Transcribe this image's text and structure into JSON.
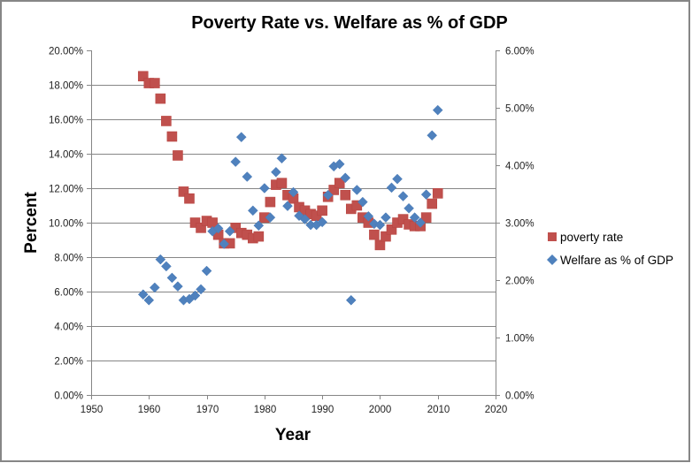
{
  "chart_data": {
    "type": "scatter",
    "title": "Poverty Rate vs. Welfare as % of GDP",
    "xlabel": "Year",
    "ylabel": "Percent",
    "y2label": "",
    "xlim": [
      1950,
      2020
    ],
    "ylim": [
      0,
      20
    ],
    "y2lim": [
      0,
      6
    ],
    "x_ticks": [
      "1950",
      "1960",
      "1970",
      "1980",
      "1990",
      "2000",
      "2010",
      "2020"
    ],
    "y_ticks": [
      "0.00%",
      "2.00%",
      "4.00%",
      "6.00%",
      "8.00%",
      "10.00%",
      "12.00%",
      "14.00%",
      "16.00%",
      "18.00%",
      "20.00%"
    ],
    "y2_ticks": [
      "0.00%",
      "1.00%",
      "2.00%",
      "3.00%",
      "4.00%",
      "5.00%",
      "6.00%"
    ],
    "grid": "horizontal major gridlines on primary axis",
    "legend_position": "right",
    "series": [
      {
        "name": "poverty rate",
        "axis": "left",
        "marker": "square",
        "color": "#C0504D",
        "x": [
          1959,
          1960,
          1961,
          1962,
          1963,
          1964,
          1965,
          1966,
          1967,
          1968,
          1969,
          1970,
          1971,
          1972,
          1973,
          1974,
          1975,
          1976,
          1977,
          1978,
          1979,
          1980,
          1981,
          1982,
          1983,
          1984,
          1985,
          1986,
          1987,
          1988,
          1989,
          1990,
          1991,
          1992,
          1993,
          1994,
          1995,
          1996,
          1997,
          1998,
          1999,
          2000,
          2001,
          2002,
          2003,
          2004,
          2005,
          2006,
          2007,
          2008,
          2009,
          2010
        ],
        "values": [
          18.5,
          18.1,
          18.1,
          17.2,
          15.9,
          15.0,
          13.9,
          11.8,
          11.4,
          10.0,
          9.7,
          10.1,
          10.0,
          9.3,
          8.8,
          8.8,
          9.7,
          9.4,
          9.3,
          9.1,
          9.2,
          10.3,
          11.2,
          12.2,
          12.3,
          11.6,
          11.4,
          10.9,
          10.7,
          10.5,
          10.4,
          10.7,
          11.5,
          11.9,
          12.3,
          11.6,
          10.8,
          11.0,
          10.3,
          10.0,
          9.3,
          8.7,
          9.2,
          9.6,
          10.0,
          10.2,
          9.9,
          9.8,
          9.8,
          10.3,
          11.1,
          11.7
        ]
      },
      {
        "name": "Welfare as % of GDP",
        "axis": "right",
        "marker": "diamond",
        "color": "#4F81BD",
        "x": [
          1959,
          1960,
          1961,
          1962,
          1963,
          1964,
          1965,
          1966,
          1967,
          1968,
          1969,
          1970,
          1971,
          1972,
          1973,
          1974,
          1975,
          1976,
          1977,
          1978,
          1979,
          1980,
          1981,
          1982,
          1983,
          1984,
          1985,
          1986,
          1987,
          1988,
          1989,
          1990,
          1991,
          1992,
          1993,
          1994,
          1995,
          1996,
          1997,
          1998,
          1999,
          2000,
          2001,
          2002,
          2003,
          2004,
          2005,
          2006,
          2007,
          2008,
          2009,
          2010
        ],
        "values": [
          1.75,
          1.65,
          1.87,
          2.36,
          2.24,
          2.04,
          1.89,
          1.65,
          1.67,
          1.73,
          1.84,
          2.16,
          2.85,
          2.9,
          2.63,
          2.85,
          4.06,
          4.49,
          3.8,
          3.21,
          2.95,
          3.6,
          3.09,
          3.88,
          4.12,
          3.29,
          3.53,
          3.12,
          3.06,
          2.96,
          2.96,
          3.01,
          3.48,
          3.98,
          4.02,
          3.78,
          1.65,
          3.57,
          3.36,
          3.11,
          2.98,
          2.96,
          3.09,
          3.61,
          3.76,
          3.46,
          3.25,
          3.09,
          3.0,
          3.49,
          4.52,
          4.96
        ]
      }
    ]
  }
}
